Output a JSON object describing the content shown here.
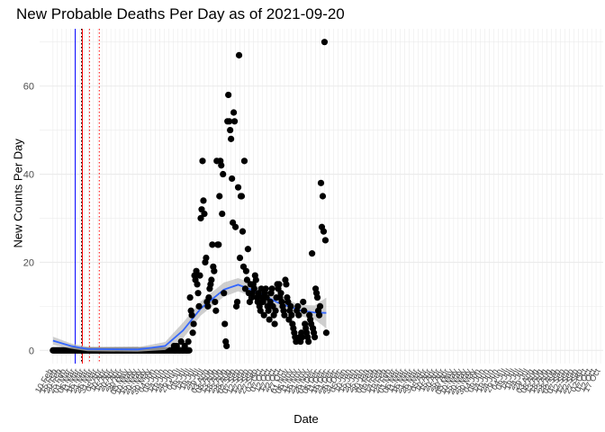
{
  "chart_data": {
    "type": "scatter",
    "title": "New Probable Deaths Per Day as of 2021-09-20",
    "xlabel": "Date",
    "ylabel": "New Counts Per Day",
    "ylim": [
      0,
      70
    ],
    "y_ticks": [
      0,
      20,
      40,
      60
    ],
    "grid": true,
    "legend": "none",
    "x_ticks_note": "dense rotated date tick labels every 5 days",
    "x_range_dates": [
      "2020-02-10",
      "2021-10-18"
    ],
    "x_tick_labels": [
      "10 Feb",
      "15 Feb",
      "20 Feb",
      "25 Feb",
      "01 Mar",
      "06 Mar",
      "11 Mar",
      "16 Mar",
      "21 Mar",
      "26 Mar",
      "31 Mar",
      "05 Apr",
      "10 Apr",
      "15 Apr",
      "20 Apr",
      "25 Apr",
      "30 Apr",
      "05 May",
      "10 May",
      "15 May",
      "20 May",
      "25 May",
      "30 May",
      "04 Jun",
      "09 Jun",
      "14 Jun",
      "19 Jun",
      "24 Jun",
      "29 Jun",
      "04 Jul",
      "09 Jul",
      "14 Jul",
      "19 Jul",
      "24 Jul",
      "29 Jul",
      "03 Aug",
      "08 Aug",
      "13 Aug",
      "18 Aug",
      "23 Aug",
      "28 Aug",
      "02 Sep",
      "07 Sep",
      "12 Sep",
      "17 Sep",
      "22 Sep",
      "27 Sep",
      "02 Oct",
      "07 Oct",
      "12 Oct",
      "17 Oct",
      "22 Oct",
      "27 Oct",
      "01 Nov",
      "06 Nov",
      "11 Nov",
      "16 Nov",
      "21 Nov",
      "26 Nov",
      "01 Dec",
      "06 Dec",
      "11 Dec",
      "16 Dec",
      "21 Dec",
      "26 Dec",
      "31 Dec",
      "05 Jan",
      "10 Jan",
      "15 Jan",
      "20 Jan",
      "25 Jan",
      "30 Jan",
      "04 Feb",
      "09 Feb",
      "14 Feb",
      "19 Feb",
      "24 Feb",
      "01 Mar",
      "06 Mar",
      "11 Mar",
      "16 Mar",
      "21 Mar",
      "26 Mar",
      "31 Mar",
      "05 Apr",
      "10 Apr",
      "15 Apr",
      "20 Apr",
      "25 Apr",
      "30 Apr",
      "05 May",
      "10 May",
      "15 May",
      "20 May",
      "25 May",
      "30 May",
      "04 Jun",
      "09 Jun",
      "14 Jun",
      "19 Jun",
      "24 Jun",
      "29 Jun",
      "04 Jul",
      "09 Jul",
      "14 Jul",
      "19 Jul",
      "24 Jul",
      "29 Jul",
      "03 Aug",
      "08 Aug",
      "13 Aug",
      "18 Aug",
      "23 Aug",
      "28 Aug",
      "02 Sep",
      "07 Sep",
      "12 Sep",
      "17 Sep",
      "22 Sep",
      "27 Sep",
      "02 Oct",
      "07 Oct",
      "12 Oct",
      "17 Oct"
    ],
    "vertical_lines": [
      {
        "date": "2020-03-06",
        "color": "#0000ff",
        "style": "solid"
      },
      {
        "date": "2020-03-13",
        "color": "#000000",
        "style": "dotted"
      },
      {
        "date": "2020-03-14",
        "color": "#ff0000",
        "style": "solid"
      },
      {
        "date": "2020-03-22",
        "color": "#ff0000",
        "style": "dotted"
      },
      {
        "date": "2020-04-02",
        "color": "#ff0000",
        "style": "dotted"
      }
    ],
    "colors": {
      "points": "#000000",
      "smooth": "#3366ff",
      "ribbon": "#bdbdbd",
      "grid": "#ebebeb"
    },
    "series": [
      {
        "type": "points",
        "points": [
          {
            "x": "2020-06-25",
            "y": 1
          },
          {
            "x": "2020-06-26",
            "y": 0
          },
          {
            "x": "2020-06-28",
            "y": 1
          },
          {
            "x": "2020-07-01",
            "y": 0
          },
          {
            "x": "2020-07-03",
            "y": 2
          },
          {
            "x": "2020-07-05",
            "y": 0
          },
          {
            "x": "2020-07-07",
            "y": 1
          },
          {
            "x": "2020-07-09",
            "y": 0
          },
          {
            "x": "2020-07-11",
            "y": 2
          },
          {
            "x": "2020-07-13",
            "y": 12
          },
          {
            "x": "2020-07-14",
            "y": 9
          },
          {
            "x": "2020-07-15",
            "y": 8
          },
          {
            "x": "2020-07-16",
            "y": 4
          },
          {
            "x": "2020-07-17",
            "y": 6
          },
          {
            "x": "2020-07-18",
            "y": 17
          },
          {
            "x": "2020-07-19",
            "y": 16
          },
          {
            "x": "2020-07-20",
            "y": 18
          },
          {
            "x": "2020-07-21",
            "y": 15
          },
          {
            "x": "2020-07-22",
            "y": 13
          },
          {
            "x": "2020-07-23",
            "y": 10
          },
          {
            "x": "2020-07-24",
            "y": 17
          },
          {
            "x": "2020-07-25",
            "y": 30
          },
          {
            "x": "2020-07-26",
            "y": 32
          },
          {
            "x": "2020-07-27",
            "y": 43
          },
          {
            "x": "2020-07-28",
            "y": 34
          },
          {
            "x": "2020-07-29",
            "y": 31
          },
          {
            "x": "2020-07-30",
            "y": 20
          },
          {
            "x": "2020-07-31",
            "y": 21
          },
          {
            "x": "2020-08-01",
            "y": 11
          },
          {
            "x": "2020-08-02",
            "y": 10
          },
          {
            "x": "2020-08-03",
            "y": 12
          },
          {
            "x": "2020-08-04",
            "y": 14
          },
          {
            "x": "2020-08-05",
            "y": 15
          },
          {
            "x": "2020-08-06",
            "y": 16
          },
          {
            "x": "2020-08-07",
            "y": 24
          },
          {
            "x": "2020-08-08",
            "y": 19
          },
          {
            "x": "2020-08-09",
            "y": 18
          },
          {
            "x": "2020-08-10",
            "y": 11
          },
          {
            "x": "2020-08-11",
            "y": 9
          },
          {
            "x": "2020-08-12",
            "y": 43
          },
          {
            "x": "2020-08-13",
            "y": 24
          },
          {
            "x": "2020-08-14",
            "y": 24
          },
          {
            "x": "2020-08-15",
            "y": 35
          },
          {
            "x": "2020-08-16",
            "y": 43
          },
          {
            "x": "2020-08-17",
            "y": 42
          },
          {
            "x": "2020-08-18",
            "y": 31
          },
          {
            "x": "2020-08-19",
            "y": 40
          },
          {
            "x": "2020-08-20",
            "y": 13
          },
          {
            "x": "2020-08-21",
            "y": 6
          },
          {
            "x": "2020-08-22",
            "y": 2
          },
          {
            "x": "2020-08-23",
            "y": 1
          },
          {
            "x": "2020-08-24",
            "y": 52
          },
          {
            "x": "2020-08-25",
            "y": 58
          },
          {
            "x": "2020-08-26",
            "y": 52
          },
          {
            "x": "2020-08-27",
            "y": 50
          },
          {
            "x": "2020-08-28",
            "y": 48
          },
          {
            "x": "2020-08-29",
            "y": 39
          },
          {
            "x": "2020-08-30",
            "y": 29
          },
          {
            "x": "2020-08-31",
            "y": 54
          },
          {
            "x": "2020-09-01",
            "y": 52
          },
          {
            "x": "2020-09-02",
            "y": 28
          },
          {
            "x": "2020-09-03",
            "y": 10
          },
          {
            "x": "2020-09-04",
            "y": 11
          },
          {
            "x": "2020-09-05",
            "y": 37
          },
          {
            "x": "2020-09-06",
            "y": 67
          },
          {
            "x": "2020-09-07",
            "y": 21
          },
          {
            "x": "2020-09-08",
            "y": 35
          },
          {
            "x": "2020-09-09",
            "y": 35
          },
          {
            "x": "2020-09-10",
            "y": 27
          },
          {
            "x": "2020-09-11",
            "y": 19
          },
          {
            "x": "2020-09-12",
            "y": 43
          },
          {
            "x": "2020-09-13",
            "y": 14
          },
          {
            "x": "2020-09-14",
            "y": 18
          },
          {
            "x": "2020-09-15",
            "y": 16
          },
          {
            "x": "2020-09-16",
            "y": 23
          },
          {
            "x": "2020-09-17",
            "y": 13
          },
          {
            "x": "2020-09-18",
            "y": 11
          },
          {
            "x": "2020-09-19",
            "y": 15
          },
          {
            "x": "2020-09-20",
            "y": 12
          },
          {
            "x": "2020-09-21",
            "y": 13
          },
          {
            "x": "2020-09-22",
            "y": 15
          },
          {
            "x": "2020-09-23",
            "y": 14
          },
          {
            "x": "2020-09-24",
            "y": 17
          },
          {
            "x": "2020-09-25",
            "y": 16
          },
          {
            "x": "2020-09-26",
            "y": 12
          },
          {
            "x": "2020-09-27",
            "y": 11
          },
          {
            "x": "2020-09-28",
            "y": 13
          },
          {
            "x": "2020-09-29",
            "y": 10
          },
          {
            "x": "2020-09-30",
            "y": 9
          },
          {
            "x": "2020-10-01",
            "y": 14
          },
          {
            "x": "2020-10-02",
            "y": 12
          },
          {
            "x": "2020-10-03",
            "y": 11
          },
          {
            "x": "2020-10-04",
            "y": 8
          },
          {
            "x": "2020-10-05",
            "y": 13
          },
          {
            "x": "2020-10-06",
            "y": 14
          },
          {
            "x": "2020-10-07",
            "y": 12
          },
          {
            "x": "2020-10-08",
            "y": 10
          },
          {
            "x": "2020-10-09",
            "y": 9
          },
          {
            "x": "2020-10-10",
            "y": 7
          },
          {
            "x": "2020-10-11",
            "y": 11
          },
          {
            "x": "2020-10-12",
            "y": 13
          },
          {
            "x": "2020-10-13",
            "y": 14
          },
          {
            "x": "2020-10-14",
            "y": 10
          },
          {
            "x": "2020-10-15",
            "y": 8
          },
          {
            "x": "2020-10-16",
            "y": 6
          },
          {
            "x": "2020-10-17",
            "y": 9
          },
          {
            "x": "2020-10-18",
            "y": 12
          },
          {
            "x": "2020-10-19",
            "y": 15
          },
          {
            "x": "2020-10-20",
            "y": 14
          },
          {
            "x": "2020-10-21",
            "y": 15
          },
          {
            "x": "2020-10-22",
            "y": 12
          },
          {
            "x": "2020-10-23",
            "y": 13
          },
          {
            "x": "2020-10-24",
            "y": 11
          },
          {
            "x": "2020-10-25",
            "y": 10
          },
          {
            "x": "2020-10-26",
            "y": 9
          },
          {
            "x": "2020-10-27",
            "y": 8
          },
          {
            "x": "2020-10-28",
            "y": 16
          },
          {
            "x": "2020-10-29",
            "y": 15
          },
          {
            "x": "2020-10-30",
            "y": 12
          },
          {
            "x": "2020-10-31",
            "y": 11
          },
          {
            "x": "2020-11-01",
            "y": 7
          },
          {
            "x": "2020-11-02",
            "y": 9
          },
          {
            "x": "2020-11-03",
            "y": 10
          },
          {
            "x": "2020-11-04",
            "y": 8
          },
          {
            "x": "2020-11-05",
            "y": 6
          },
          {
            "x": "2020-11-06",
            "y": 5
          },
          {
            "x": "2020-11-07",
            "y": 4
          },
          {
            "x": "2020-11-08",
            "y": 3
          },
          {
            "x": "2020-11-09",
            "y": 2
          },
          {
            "x": "2020-11-10",
            "y": 9
          },
          {
            "x": "2020-11-11",
            "y": 10
          },
          {
            "x": "2020-11-12",
            "y": 8
          },
          {
            "x": "2020-11-13",
            "y": 3
          },
          {
            "x": "2020-11-14",
            "y": 2
          },
          {
            "x": "2020-11-15",
            "y": 4
          },
          {
            "x": "2020-11-16",
            "y": 3
          },
          {
            "x": "2020-11-17",
            "y": 11
          },
          {
            "x": "2020-11-18",
            "y": 9
          },
          {
            "x": "2020-11-19",
            "y": 6
          },
          {
            "x": "2020-11-20",
            "y": 5
          },
          {
            "x": "2020-11-21",
            "y": 4
          },
          {
            "x": "2020-11-22",
            "y": 3
          },
          {
            "x": "2020-11-23",
            "y": 2
          },
          {
            "x": "2020-11-24",
            "y": 8
          },
          {
            "x": "2020-11-25",
            "y": 7
          },
          {
            "x": "2020-11-26",
            "y": 6
          },
          {
            "x": "2020-11-27",
            "y": 22
          },
          {
            "x": "2020-11-28",
            "y": 5
          },
          {
            "x": "2020-11-29",
            "y": 4
          },
          {
            "x": "2020-11-30",
            "y": 3
          },
          {
            "x": "2020-12-01",
            "y": 14
          },
          {
            "x": "2020-12-02",
            "y": 13
          },
          {
            "x": "2020-12-03",
            "y": 12
          },
          {
            "x": "2020-12-04",
            "y": 9
          },
          {
            "x": "2020-12-05",
            "y": 8
          },
          {
            "x": "2020-12-06",
            "y": 10
          },
          {
            "x": "2020-12-07",
            "y": 38
          },
          {
            "x": "2020-12-08",
            "y": 28
          },
          {
            "x": "2020-12-09",
            "y": 35
          },
          {
            "x": "2020-12-10",
            "y": 27
          },
          {
            "x": "2020-12-11",
            "y": 70
          },
          {
            "x": "2020-12-12",
            "y": 25
          },
          {
            "x": "2020-12-13",
            "y": 4
          }
        ]
      }
    ]
  }
}
